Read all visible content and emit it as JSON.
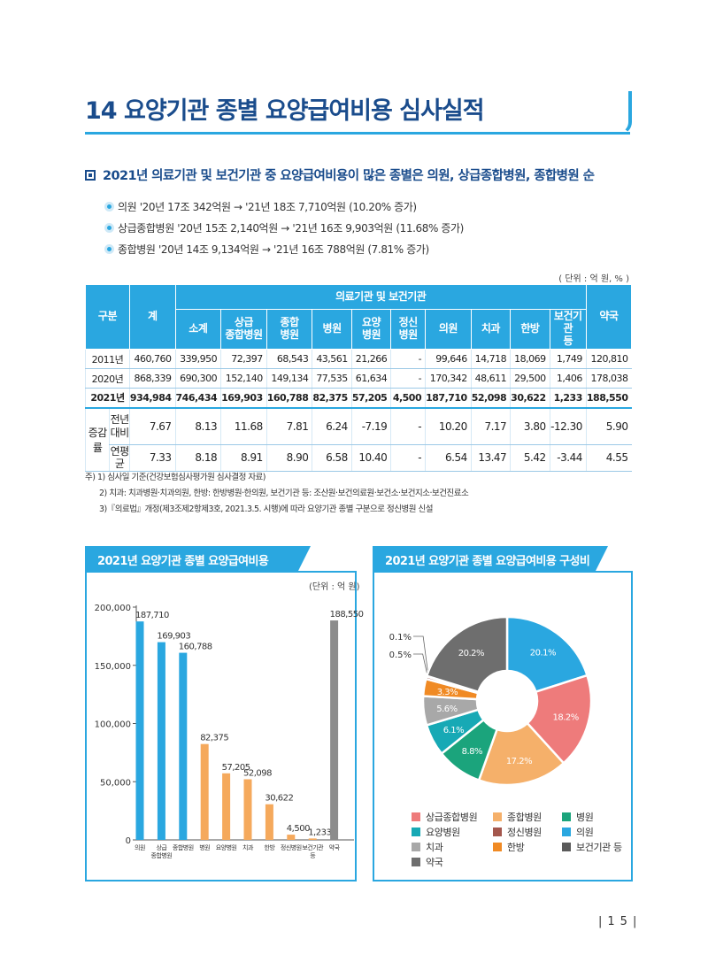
{
  "page": {
    "title": "14 요양기관 종별 요양급여비용 심사실적",
    "subheading": "2021년 의료기관 및 보건기관 중 요양급여비용이 많은 종별은 의원, 상급종합병원, 종합병원 순",
    "bullets": [
      "의원 '20년 17조 342억원 → '21년 18조 7,710억원 (10.20% 증가)",
      "상급종합병원 '20년 15조 2,140억원 → '21년 16조 9,903억원 (11.68% 증가)",
      "종합병원 '20년 14조 9,134억원 → '21년 16조 788억원 (7.81% 증가)"
    ],
    "page_number": "15"
  },
  "table": {
    "unit": "( 단위 : 억 원, % )",
    "head": {
      "gubun": "구분",
      "total": "계",
      "group": "의료기관 및 보건기관",
      "pharmacy": "약국",
      "sub": [
        "소계",
        "상급\n종합병원",
        "종합\n병원",
        "병원",
        "요양\n병원",
        "정신\n병원",
        "의원",
        "치과",
        "한방",
        "보건기관\n등"
      ]
    },
    "rows": [
      {
        "label": "2011년",
        "values": [
          "460,760",
          "339,950",
          "72,397",
          "68,543",
          "43,561",
          "21,266",
          "-",
          "99,646",
          "14,718",
          "18,069",
          "1,749",
          "120,810"
        ]
      },
      {
        "label": "2020년",
        "values": [
          "868,339",
          "690,300",
          "152,140",
          "149,134",
          "77,535",
          "61,634",
          "-",
          "170,342",
          "48,611",
          "29,500",
          "1,406",
          "178,038"
        ]
      },
      {
        "label": "2021년",
        "values": [
          "934,984",
          "746,434",
          "169,903",
          "160,788",
          "82,375",
          "57,205",
          "4,500",
          "187,710",
          "52,098",
          "30,622",
          "1,233",
          "188,550"
        ]
      }
    ],
    "rate_label": "증감률",
    "rate_rows": [
      {
        "label": "전년\n대비",
        "values": [
          "7.67",
          "8.13",
          "11.68",
          "7.81",
          "6.24",
          "-7.19",
          "-",
          "10.20",
          "7.17",
          "3.80",
          "-12.30",
          "5.90"
        ]
      },
      {
        "label": "연평균",
        "values": [
          "7.33",
          "8.18",
          "8.91",
          "8.90",
          "6.58",
          "10.40",
          "-",
          "6.54",
          "13.47",
          "5.42",
          "-3.44",
          "4.55"
        ]
      }
    ],
    "notes": [
      "주) 1) 심사일 기준(건강보험심사평가원 심사결정 자료)",
      "2) 치과: 치과병원·치과의원, 한방: 한방병원·한의원, 보건기관 등: 조산원·보건의료원·보건소·보건지소·보건진료소",
      "3)『의료법』개정(제3조제2항제3호, 2021.3.5. 시행)에 따라 요양기관 종별 구분으로 정신병원 신설"
    ]
  },
  "chart_data": [
    {
      "type": "bar",
      "title": "2021년 요양기관 종별 요양급여비용",
      "unit": "(단위 : 억 원)",
      "categories": [
        "의원",
        "상급\n종합병원",
        "종합병원",
        "병원",
        "요양병원",
        "치과",
        "한방",
        "정신병원",
        "보건기관\n등",
        "약국"
      ],
      "values": [
        187710,
        169903,
        160788,
        82375,
        57205,
        52098,
        30622,
        4500,
        1233,
        188550
      ],
      "labels": [
        "187,710",
        "169,903",
        "160,788",
        "82,375",
        "57,205",
        "52,098",
        "30,622",
        "4,500",
        "1,233",
        "188,550"
      ],
      "colors": [
        "#2aa7e0",
        "#2aa7e0",
        "#2aa7e0",
        "#f5a95c",
        "#f5a95c",
        "#f5a95c",
        "#f5a95c",
        "#f5a95c",
        "#f5a95c",
        "#8c8c8c"
      ],
      "yticks": [
        0,
        50000,
        100000,
        150000,
        200000
      ],
      "ytick_labels": [
        "0",
        "50,000",
        "100,000",
        "150,000",
        "200,000"
      ],
      "ylim": [
        0,
        200000
      ]
    },
    {
      "type": "pie",
      "title": "2021년 요양기관 종별 요양급여비용 구성비",
      "slices": [
        {
          "name": "의원",
          "value": 20.1,
          "label": "20.1%",
          "color": "#2aa7e0"
        },
        {
          "name": "상급종합병원",
          "value": 18.2,
          "label": "18.2%",
          "color": "#ee7b7b"
        },
        {
          "name": "종합병원",
          "value": 17.2,
          "label": "17.2%",
          "color": "#f5b06a"
        },
        {
          "name": "병원",
          "value": 8.8,
          "label": "8.8%",
          "color": "#1ba47c"
        },
        {
          "name": "요양병원",
          "value": 6.1,
          "label": "6.1%",
          "color": "#17a9b5"
        },
        {
          "name": "치과",
          "value": 5.6,
          "label": "5.6%",
          "color": "#a8a8a8"
        },
        {
          "name": "한방",
          "value": 3.3,
          "label": "3.3%",
          "color": "#f08a24"
        },
        {
          "name": "정신병원",
          "value": 0.5,
          "label": "0.5%",
          "color": "#a4574d"
        },
        {
          "name": "보건기관 등",
          "value": 0.1,
          "label": "0.1%",
          "color": "#5a5a5a"
        },
        {
          "name": "약국",
          "value": 20.2,
          "label": "20.2%",
          "color": "#6e6e6e"
        }
      ],
      "legend": [
        {
          "name": "상급종합병원",
          "color": "#ee7b7b"
        },
        {
          "name": "종합병원",
          "color": "#f5b06a"
        },
        {
          "name": "병원",
          "color": "#1ba47c"
        },
        {
          "name": "요양병원",
          "color": "#17a9b5"
        },
        {
          "name": "정신병원",
          "color": "#a4574d"
        },
        {
          "name": "의원",
          "color": "#2aa7e0"
        },
        {
          "name": "치과",
          "color": "#a8a8a8"
        },
        {
          "name": "한방",
          "color": "#f08a24"
        },
        {
          "name": "보건기관 등",
          "color": "#5a5a5a"
        },
        {
          "name": "약국",
          "color": "#6e6e6e"
        }
      ]
    }
  ]
}
